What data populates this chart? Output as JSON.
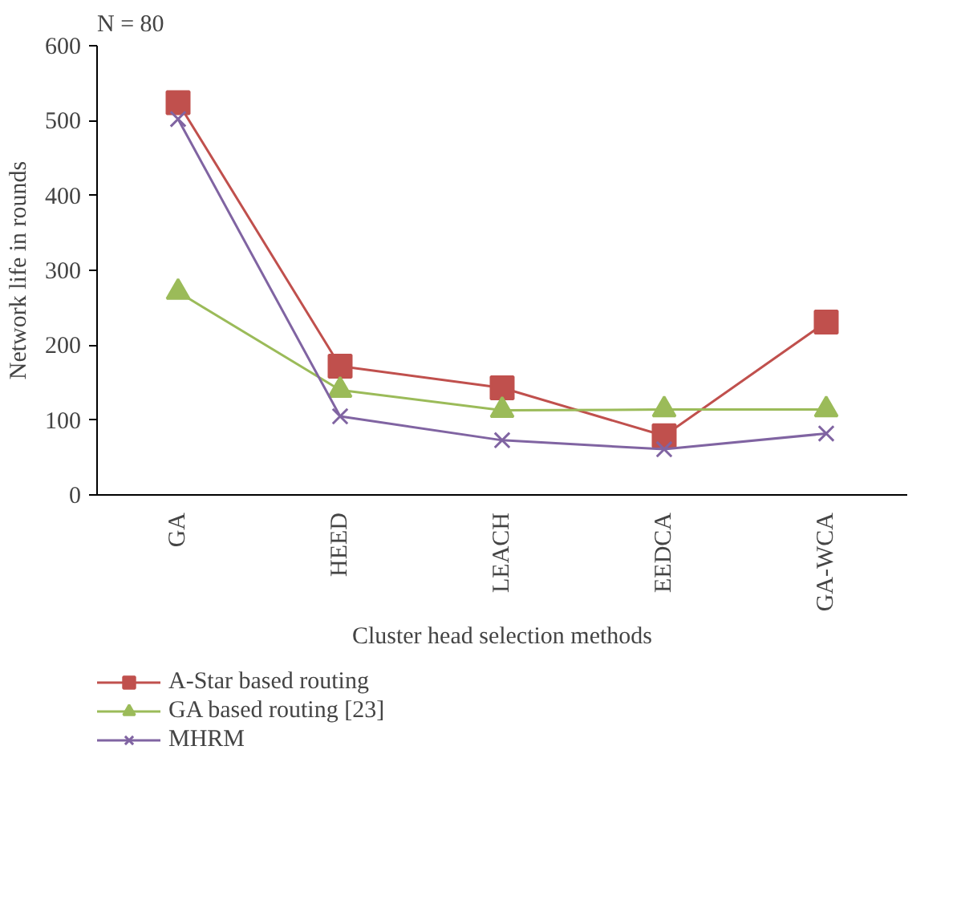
{
  "chart_data": {
    "type": "line",
    "title": "N = 80",
    "xlabel": "Cluster head selection methods",
    "ylabel": "Network life in rounds",
    "categories": [
      "GA",
      "HEED",
      "LEACH",
      "EEDCA",
      "GA-WCA"
    ],
    "series": [
      {
        "name": "A-Star based routing",
        "color": "#c0504d",
        "marker": "square",
        "values": [
          524,
          172,
          143,
          79,
          231
        ]
      },
      {
        "name": "GA based routing [23]",
        "color": "#9bbb59",
        "marker": "triangle",
        "values": [
          271,
          140,
          113,
          114,
          114
        ]
      },
      {
        "name": "MHRM",
        "color": "#8064a2",
        "marker": "cross",
        "values": [
          502,
          105,
          73,
          61,
          82
        ]
      }
    ],
    "ylim": [
      0,
      600
    ],
    "yticks": [
      0,
      100,
      200,
      300,
      400,
      500,
      600
    ],
    "grid": false,
    "legend": "bottom",
    "line_style": "solid"
  }
}
